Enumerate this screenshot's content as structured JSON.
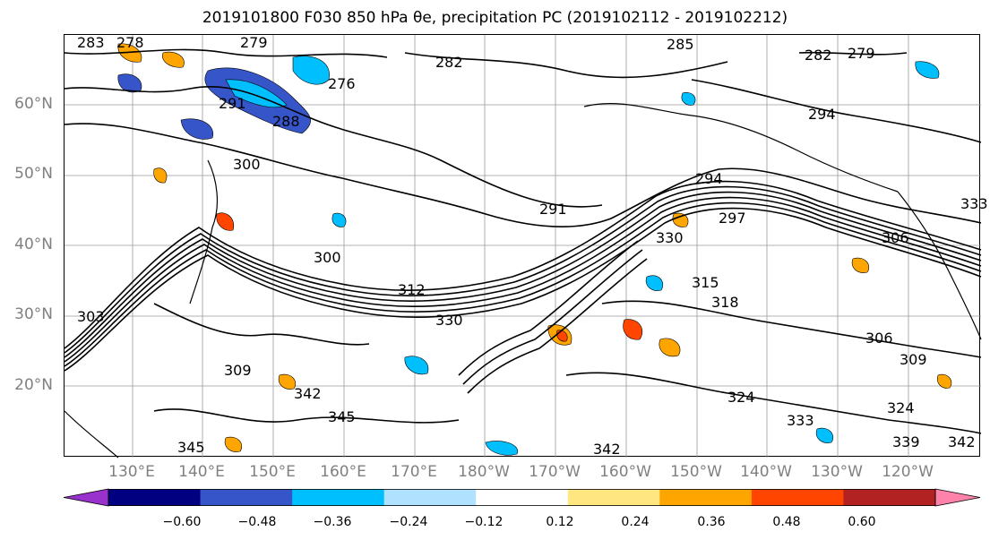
{
  "title": "2019101800 F030 850 hPa θe, precipitation PC (2019102112 - 2019102212)",
  "lat_labels": [
    "60°N",
    "50°N",
    "40°N",
    "30°N",
    "20°N"
  ],
  "lon_labels": [
    "130°E",
    "140°E",
    "150°E",
    "160°E",
    "170°E",
    "180°W",
    "170°W",
    "160°W",
    "150°W",
    "140°W",
    "130°W",
    "120°W"
  ],
  "contour_labels": [
    "283",
    "278",
    "279",
    "285",
    "282",
    "282",
    "279",
    "276",
    "291",
    "288",
    "294",
    "300",
    "291",
    "294",
    "297",
    "330",
    "300",
    "312",
    "315",
    "318",
    "330",
    "306",
    "309",
    "306",
    "309",
    "303",
    "342",
    "345",
    "345",
    "342",
    "324",
    "333",
    "324",
    "339",
    "342",
    "333"
  ],
  "colorbar": {
    "ticks": [
      "−0.60",
      "−0.48",
      "−0.36",
      "−0.24",
      "−0.12",
      "0.12",
      "0.24",
      "0.36",
      "0.48",
      "0.60"
    ],
    "colors": [
      "#9932cc",
      "#000080",
      "#3655c8",
      "#00bfff",
      "#b0e2ff",
      "#ffffff",
      "#ffe680",
      "#ffa500",
      "#ff4500",
      "#b22222",
      "#ff82ab"
    ]
  }
}
